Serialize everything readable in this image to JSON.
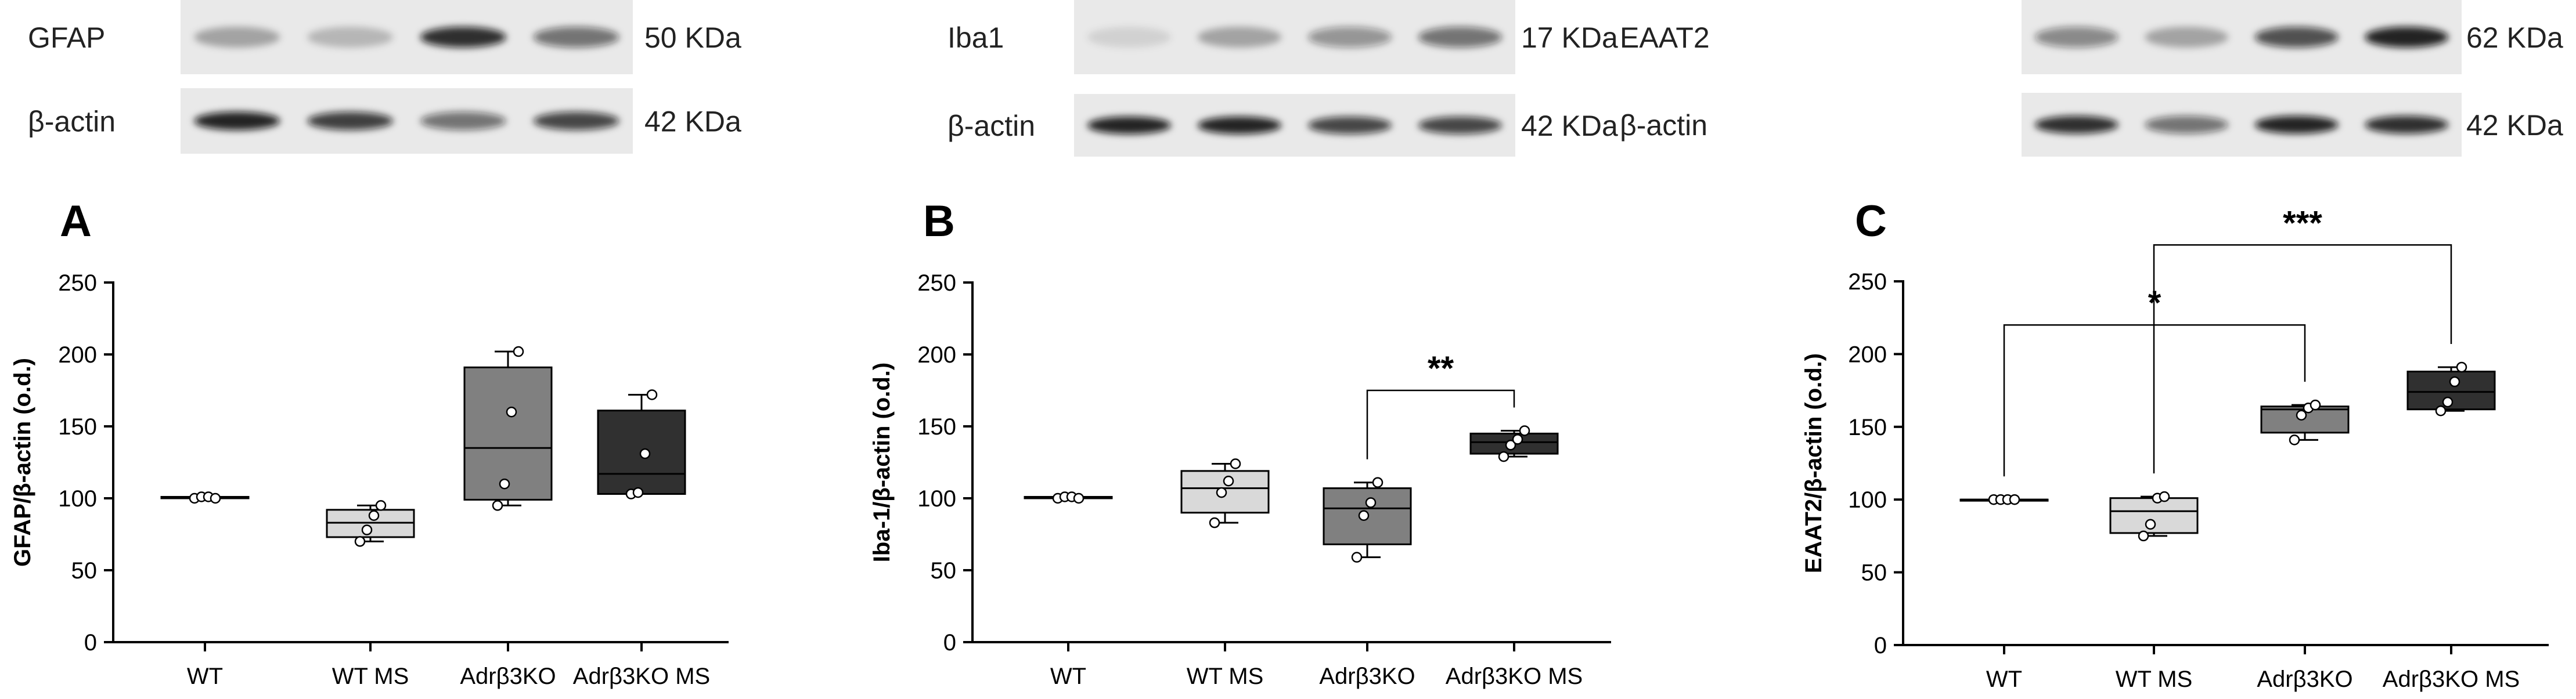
{
  "panels": [
    {
      "letter": "A",
      "blot": {
        "rows": [
          {
            "label": "GFAP",
            "size": "50 KDa",
            "bands": [
              0.3,
              0.22,
              0.85,
              0.55
            ]
          },
          {
            "label": "β-actin",
            "size": "42 KDa",
            "bands": [
              0.9,
              0.78,
              0.55,
              0.75
            ]
          }
        ]
      }
    },
    {
      "letter": "B",
      "blot": {
        "rows": [
          {
            "label": "Iba1",
            "size": "17 KDa",
            "bands": [
              0.1,
              0.3,
              0.4,
              0.55
            ]
          },
          {
            "label": "β-actin",
            "size": "42 KDa",
            "bands": [
              0.9,
              0.9,
              0.75,
              0.75
            ]
          }
        ]
      }
    },
    {
      "letter": "C",
      "blot": {
        "rows": [
          {
            "label": "EAAT2",
            "size": "62 KDa",
            "bands": [
              0.45,
              0.3,
              0.7,
              0.9
            ]
          },
          {
            "label": "β-actin",
            "size": "42 KDa",
            "bands": [
              0.85,
              0.55,
              0.9,
              0.85
            ]
          }
        ]
      }
    }
  ],
  "chart_data": [
    {
      "type": "box",
      "title": "",
      "xlabel": "",
      "ylabel": "GFAP/β-actin (o.d.)",
      "ylim": [
        0,
        250
      ],
      "yticks": [
        0,
        50,
        100,
        150,
        200,
        250
      ],
      "grid": false,
      "categories": [
        "WT",
        "WT MS",
        "Adrβ3KO",
        "Adrβ3KO MS"
      ],
      "box_colors": [
        "#ffffff",
        "#d9d9d9",
        "#808080",
        "#303030"
      ],
      "boxes": [
        {
          "min": 100,
          "q1": 100,
          "median": 100,
          "q3": 101,
          "max": 102
        },
        {
          "min": 70,
          "q1": 73,
          "median": 83,
          "q3": 92,
          "max": 95
        },
        {
          "min": 95,
          "q1": 99,
          "median": 135,
          "q3": 191,
          "max": 202
        },
        {
          "min": 103,
          "q1": 103,
          "median": 117,
          "q3": 161,
          "max": 172
        }
      ],
      "points": [
        [
          100,
          101,
          101,
          100
        ],
        [
          70,
          78,
          88,
          95
        ],
        [
          95,
          110,
          160,
          202
        ],
        [
          103,
          104,
          131,
          172
        ]
      ],
      "significance": []
    },
    {
      "type": "box",
      "title": "",
      "xlabel": "",
      "ylabel": "Iba-1/β-actin (o.d.)",
      "ylim": [
        0,
        250
      ],
      "yticks": [
        0,
        50,
        100,
        150,
        200,
        250
      ],
      "grid": false,
      "categories": [
        "WT",
        "WT MS",
        "Adrβ3KO",
        "Adrβ3KO MS"
      ],
      "box_colors": [
        "#ffffff",
        "#d9d9d9",
        "#808080",
        "#303030"
      ],
      "boxes": [
        {
          "min": 100,
          "q1": 100,
          "median": 100,
          "q3": 101,
          "max": 101
        },
        {
          "min": 83,
          "q1": 90,
          "median": 107,
          "q3": 119,
          "max": 124
        },
        {
          "min": 59,
          "q1": 68,
          "median": 93,
          "q3": 107,
          "max": 111
        },
        {
          "min": 129,
          "q1": 131,
          "median": 139,
          "q3": 145,
          "max": 147
        }
      ],
      "points": [
        [
          100,
          101,
          101,
          100
        ],
        [
          83,
          104,
          112,
          124
        ],
        [
          59,
          88,
          97,
          111
        ],
        [
          129,
          137,
          141,
          147
        ]
      ],
      "significance": [
        {
          "from": 2,
          "to": 3,
          "label": "**",
          "y": 175
        }
      ]
    },
    {
      "type": "box",
      "title": "",
      "xlabel": "",
      "ylabel": "EAAT2/β-actin (o.d.)",
      "ylim": [
        0,
        250
      ],
      "yticks": [
        0,
        50,
        100,
        150,
        200,
        250
      ],
      "grid": false,
      "categories": [
        "WT",
        "WT MS",
        "Adrβ3KO",
        "Adrβ3KO MS"
      ],
      "box_colors": [
        "#ffffff",
        "#d9d9d9",
        "#808080",
        "#303030"
      ],
      "boxes": [
        {
          "min": 100,
          "q1": 100,
          "median": 100,
          "q3": 100,
          "max": 100
        },
        {
          "min": 75,
          "q1": 77,
          "median": 92,
          "q3": 101,
          "max": 102
        },
        {
          "min": 141,
          "q1": 146,
          "median": 162,
          "q3": 164,
          "max": 165
        },
        {
          "min": 161,
          "q1": 162,
          "median": 174,
          "q3": 188,
          "max": 191
        }
      ],
      "points": [
        [
          100,
          100,
          100,
          100
        ],
        [
          75,
          83,
          101,
          102
        ],
        [
          141,
          158,
          163,
          165
        ],
        [
          161,
          167,
          181,
          191
        ]
      ],
      "significance": [
        {
          "from": 0,
          "to": 2,
          "label": "*",
          "y": 220
        },
        {
          "from": 1,
          "to": 3,
          "label": "***",
          "y": 275
        }
      ]
    }
  ]
}
